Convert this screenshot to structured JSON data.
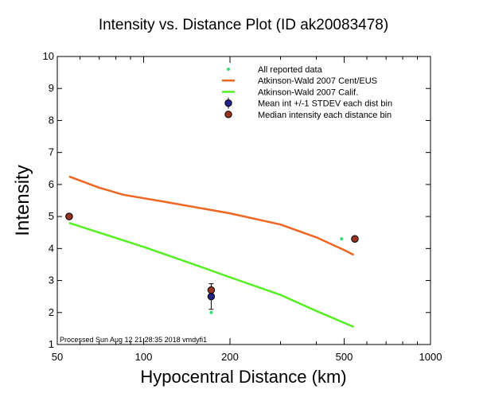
{
  "chart_data": {
    "type": "scatter",
    "title": "Intensity vs. Distance Plot (ID ak20083478)",
    "xlabel": "Hypocentral Distance (km)",
    "ylabel": "Intensity",
    "x_scale": "log",
    "xlim": [
      50,
      1000
    ],
    "ylim": [
      1,
      10
    ],
    "x_ticks": [
      "50",
      "100",
      "200",
      "500",
      "1000"
    ],
    "y_ticks": [
      "1",
      "2",
      "3",
      "4",
      "5",
      "6",
      "7",
      "8",
      "9",
      "10"
    ],
    "legend_position": "top-right",
    "footnote": "Processed Sun Aug 12 21:28:35 2018 vmdyfi1",
    "series": [
      {
        "name": "All reported data",
        "kind": "points",
        "color": "#33dd77",
        "points": [
          [
            55,
            5.0
          ],
          [
            170,
            2.7
          ],
          [
            172,
            2.0
          ],
          [
            490,
            4.3
          ]
        ]
      },
      {
        "name": "Atkinson-Wald 2007 Cent/EUS",
        "kind": "line",
        "color": "#ee6622",
        "points": [
          [
            55,
            6.25
          ],
          [
            70,
            5.9
          ],
          [
            85,
            5.68
          ],
          [
            120,
            5.45
          ],
          [
            200,
            5.1
          ],
          [
            300,
            4.75
          ],
          [
            400,
            4.35
          ],
          [
            500,
            3.95
          ],
          [
            540,
            3.8
          ]
        ]
      },
      {
        "name": "Atkinson-Wald 2007 Calif.",
        "kind": "line",
        "color": "#55ee22",
        "points": [
          [
            55,
            4.8
          ],
          [
            100,
            4.05
          ],
          [
            150,
            3.5
          ],
          [
            200,
            3.1
          ],
          [
            300,
            2.55
          ],
          [
            400,
            2.05
          ],
          [
            540,
            1.55
          ]
        ]
      },
      {
        "name": "Mean int +/-1 STDEV each dist bin",
        "kind": "errorbar",
        "color": "#222288",
        "points": [
          [
            55,
            5.0,
            0.0
          ],
          [
            172,
            2.5,
            0.4
          ],
          [
            545,
            4.3,
            0.0
          ]
        ]
      },
      {
        "name": "Median intensity each distance bin",
        "kind": "points",
        "color": "#993322",
        "points": [
          [
            55,
            5.0
          ],
          [
            172,
            2.7
          ],
          [
            545,
            4.3
          ]
        ]
      }
    ]
  }
}
